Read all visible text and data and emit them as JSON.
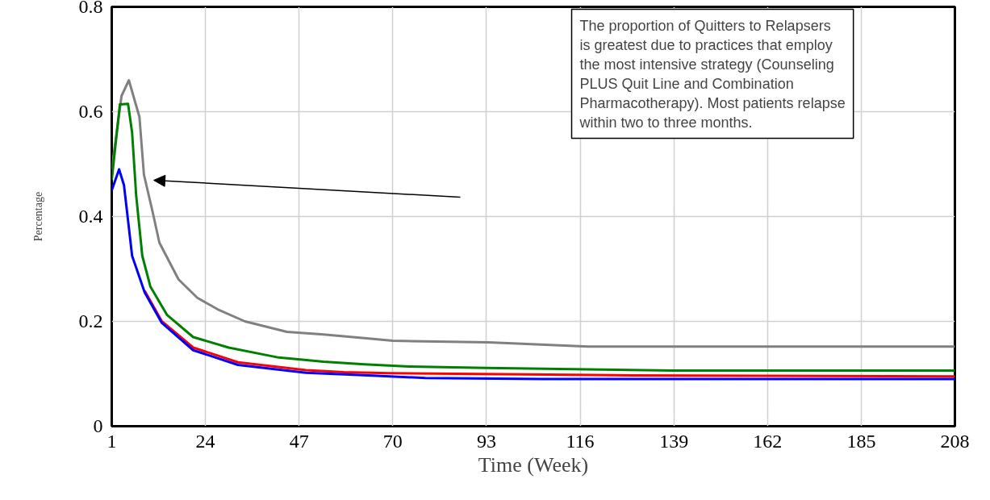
{
  "chart_data": {
    "type": "line",
    "xlabel": "Time (Week)",
    "ylabel": "Percentage",
    "xlim": [
      1,
      208
    ],
    "xticks": [
      1,
      24,
      47,
      70,
      93,
      116,
      139,
      162,
      185,
      208
    ],
    "ylim": [
      0,
      0.8
    ],
    "yticks": [
      0,
      0.2,
      0.4,
      0.6,
      0.8
    ],
    "grid": true,
    "line_style": "solid",
    "marker": "none",
    "series": [
      {
        "color": "#808080",
        "x": [
          1,
          3.4,
          5.2,
          7.8,
          8.9,
          11,
          12.7,
          17.4,
          22,
          27,
          33.7,
          44,
          53,
          63,
          70,
          93.5,
          118,
          208
        ],
        "values": [
          0.49,
          0.63,
          0.66,
          0.59,
          0.48,
          0.41,
          0.35,
          0.28,
          0.245,
          0.223,
          0.2,
          0.18,
          0.175,
          0.168,
          0.163,
          0.16,
          0.152,
          0.152
        ]
      },
      {
        "color": "#008000",
        "x": [
          1,
          3,
          5,
          6,
          7,
          8.5,
          10.5,
          14.6,
          21,
          29.7,
          42,
          53,
          63,
          74,
          93,
          139,
          208
        ],
        "values": [
          0.47,
          0.614,
          0.615,
          0.56,
          0.44,
          0.325,
          0.266,
          0.212,
          0.17,
          0.15,
          0.131,
          0.123,
          0.118,
          0.114,
          0.111,
          0.106,
          0.106
        ]
      },
      {
        "color": "#ff0000",
        "x": [
          9.1,
          13.3,
          21,
          32,
          48.7,
          58,
          69,
          86,
          129,
          208
        ],
        "values": [
          0.258,
          0.2,
          0.15,
          0.122,
          0.107,
          0.103,
          0.101,
          0.1,
          0.097,
          0.095
        ]
      },
      {
        "color": "#0000ff",
        "x": [
          1,
          2.8,
          4,
          6,
          9.1,
          13.3,
          21,
          32,
          48.7,
          64,
          78,
          107,
          208
        ],
        "values": [
          0.45,
          0.49,
          0.46,
          0.325,
          0.255,
          0.197,
          0.145,
          0.117,
          0.102,
          0.097,
          0.092,
          0.09,
          0.09
        ]
      }
    ],
    "annotations": [
      "The proportion of Quitters to Relapsers is greatest due to practices that employ the most intensive strategy (Counseling PLUS Quit Line and Combination Pharmacotherapy). Most patients relapse within two to three months."
    ]
  }
}
